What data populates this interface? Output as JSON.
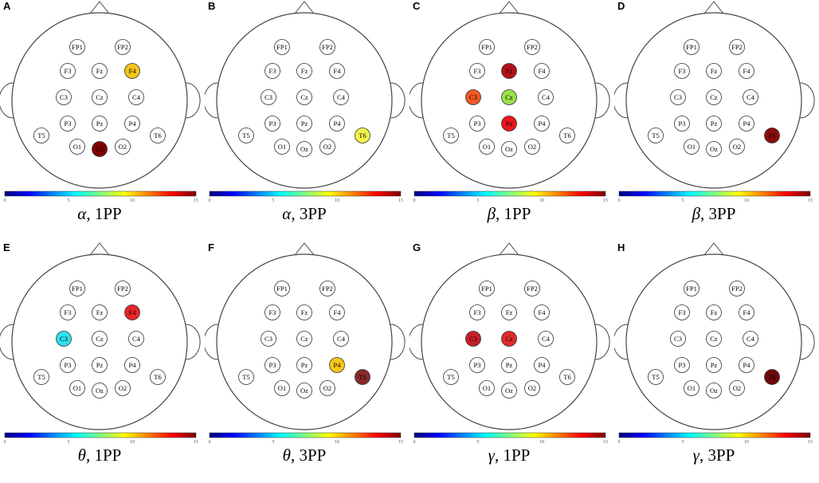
{
  "colorbar": {
    "ticks": [
      "0",
      "5",
      "10",
      "15"
    ],
    "min": 0,
    "max": 15,
    "colormap": [
      "#00007f",
      "#0000ff",
      "#0080ff",
      "#00ffff",
      "#80ff80",
      "#ffff00",
      "#ff8000",
      "#ff0000",
      "#7f0000"
    ]
  },
  "electrodes": [
    "FP1",
    "FP2",
    "F3",
    "Fz",
    "F4",
    "C3",
    "Cz",
    "C4",
    "P3",
    "Pz",
    "P4",
    "T5",
    "T6",
    "O1",
    "Oz",
    "O2"
  ],
  "panels": [
    {
      "letter": "A",
      "band": "α",
      "condition": ", 1PP",
      "highlights": [
        {
          "electrode": "F4",
          "color": "#f5c518"
        },
        {
          "electrode": "Oz",
          "color": "#800000"
        }
      ]
    },
    {
      "letter": "B",
      "band": "α",
      "condition": ", 3PP",
      "highlights": [
        {
          "electrode": "T6",
          "color": "#f4f44a"
        }
      ]
    },
    {
      "letter": "C",
      "band": "β",
      "condition": ", 1PP",
      "highlights": [
        {
          "electrode": "Fz",
          "color": "#b3101a"
        },
        {
          "electrode": "C3",
          "color": "#f15a24"
        },
        {
          "electrode": "Cz",
          "color": "#9be04a"
        },
        {
          "electrode": "Pz",
          "color": "#e8171c"
        }
      ]
    },
    {
      "letter": "D",
      "band": "β",
      "condition": ", 3PP",
      "highlights": [
        {
          "electrode": "T6",
          "color": "#8b0d0d"
        }
      ]
    },
    {
      "letter": "E",
      "band": "θ",
      "condition": ", 1PP",
      "highlights": [
        {
          "electrode": "F4",
          "color": "#e6262b"
        },
        {
          "electrode": "C3",
          "color": "#2ee0ee"
        }
      ]
    },
    {
      "letter": "F",
      "band": "θ",
      "condition": ", 3PP",
      "highlights": [
        {
          "electrode": "P4",
          "color": "#f5c518"
        },
        {
          "electrode": "T6",
          "color": "#8a2a2a"
        }
      ]
    },
    {
      "letter": "G",
      "band": "γ",
      "condition": ", 1PP",
      "highlights": [
        {
          "electrode": "C3",
          "color": "#c81e2c"
        },
        {
          "electrode": "Cz",
          "color": "#e02a2a"
        }
      ]
    },
    {
      "letter": "H",
      "band": "γ",
      "condition": ", 3PP",
      "highlights": [
        {
          "electrode": "T6",
          "color": "#6e0a0a"
        }
      ]
    }
  ]
}
